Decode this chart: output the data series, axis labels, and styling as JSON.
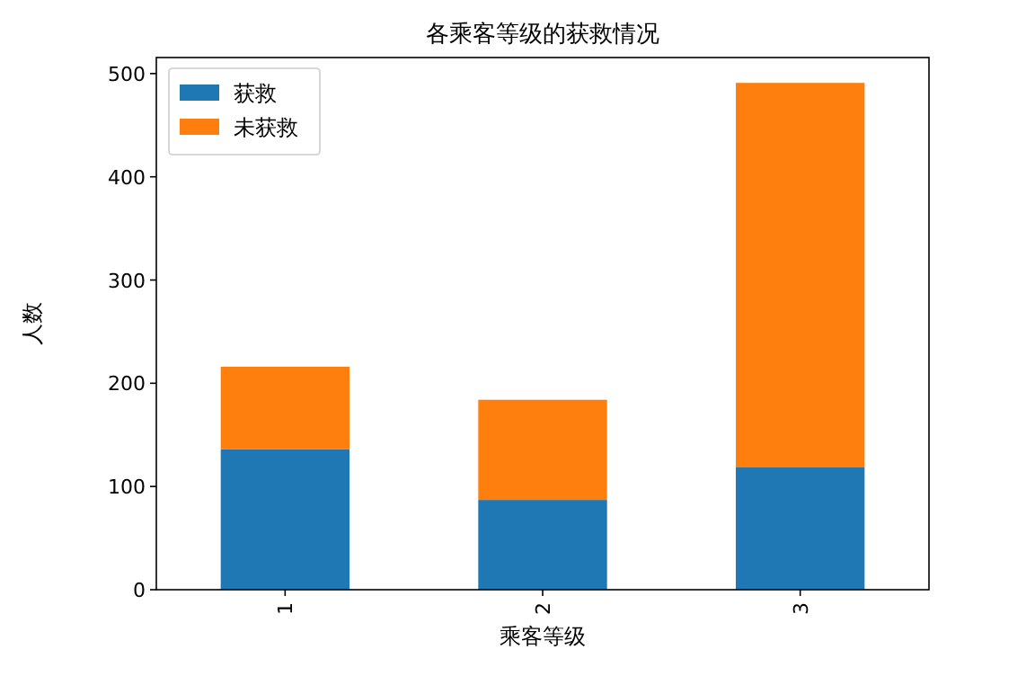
{
  "chart_data": {
    "type": "bar",
    "title": "各乘客等级的获救情况",
    "xlabel": "乘客等级",
    "ylabel": "人数",
    "categories": [
      "1",
      "2",
      "3"
    ],
    "stacked": true,
    "legend": "top left",
    "ylim": [
      0,
      515.55
    ],
    "yticks": [
      0,
      100,
      200,
      300,
      400,
      500
    ],
    "series": [
      {
        "name": "获救",
        "color": "#1f77b4",
        "values": [
          136,
          87,
          119
        ]
      },
      {
        "name": "未获救",
        "color": "#ff7f0e",
        "values": [
          80,
          97,
          372
        ]
      }
    ]
  }
}
